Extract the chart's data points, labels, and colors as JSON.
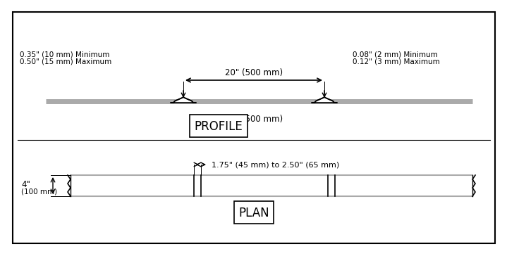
{
  "bg_color": "#ffffff",
  "border_color": "#000000",
  "line_color": "#000000",
  "gray_color": "#aaaaaa",
  "fig_width": 7.0,
  "fig_height": 3.45,
  "profile_label": "PROFILE",
  "plan_label": "PLAN",
  "top_left_text1": "0.35\" (10 mm) Minimum",
  "top_left_text2": "0.50\" (15 mm) Maximum",
  "top_right_text1": "0.08\" (2 mm) Minimum",
  "top_right_text2": "0.12\" (3 mm) Maximum",
  "top_dim_text": "20\" (500 mm)",
  "bottom_dim_text": "20\" (500 mm)",
  "plan_left_text1": "4\"",
  "plan_left_text2": "(100 mm)",
  "plan_width_text": "1.75\" (45 mm) to 2.50\" (65 mm)"
}
